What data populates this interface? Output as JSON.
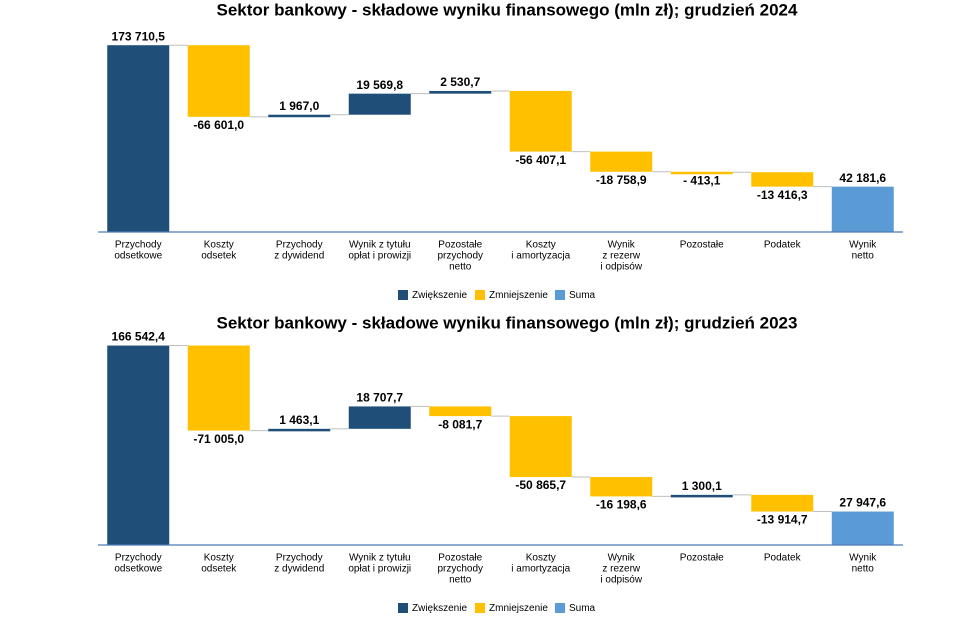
{
  "chart_data": [
    {
      "type": "waterfall",
      "title": "Sektor bankowy - składowe wyniku finansowego (mln zł); grudzień 2024",
      "categories": [
        [
          "Przychody",
          "odsetkowe"
        ],
        [
          "Koszty",
          "odsetek"
        ],
        [
          "Przychody",
          "z dywidend"
        ],
        [
          "Wynik z tytułu",
          "opłat i prowizji"
        ],
        [
          "Pozostałe",
          "przychody",
          "netto"
        ],
        [
          "Koszty",
          "i amortyzacja"
        ],
        [
          "Wynik",
          "z rezerw",
          "i odpisów"
        ],
        [
          "Pozostałe"
        ],
        [
          "Podatek"
        ],
        [
          "Wynik",
          "netto"
        ]
      ],
      "measures": [
        "relative",
        "relative",
        "relative",
        "relative",
        "relative",
        "relative",
        "relative",
        "relative",
        "relative",
        "total"
      ],
      "values": [
        173710.5,
        -66601.0,
        1967.0,
        19569.8,
        2530.7,
        -56407.1,
        -18758.9,
        -413.1,
        -13416.3,
        42181.6
      ],
      "value_labels": [
        "173 710,5",
        "-66 601,0",
        "1 967,0",
        "19 569,8",
        "2 530,7",
        "-56 407,1",
        "-18 758,9",
        "- 413,1",
        "-13 416,3",
        "42 181,6"
      ],
      "ylim": [
        0,
        186000
      ],
      "legend": [
        {
          "name": "Zwiększenie",
          "color": "#1f4e79"
        },
        {
          "name": "Zmniejszenie",
          "color": "#ffc000"
        },
        {
          "name": "Suma",
          "color": "#5b9bd5"
        }
      ]
    },
    {
      "type": "waterfall",
      "title": "Sektor bankowy - składowe wyniku finansowego (mln zł); grudzień 2023",
      "categories": [
        [
          "Przychody",
          "odsetkowe"
        ],
        [
          "Koszty",
          "odsetek"
        ],
        [
          "Przychody",
          "z dywidend"
        ],
        [
          "Wynik z tytułu",
          "opłat i prowizji"
        ],
        [
          "Pozostałe",
          "przychody",
          "netto"
        ],
        [
          "Koszty",
          "i amortyzacja"
        ],
        [
          "Wynik",
          "z rezerw",
          "i odpisów"
        ],
        [
          "Pozostałe"
        ],
        [
          "Podatek"
        ],
        [
          "Wynik",
          "netto"
        ]
      ],
      "measures": [
        "relative",
        "relative",
        "relative",
        "relative",
        "relative",
        "relative",
        "relative",
        "relative",
        "relative",
        "total"
      ],
      "values": [
        166542.4,
        -71005.0,
        1463.1,
        18707.7,
        -8081.7,
        -50865.7,
        -16198.6,
        1300.1,
        -13914.7,
        27947.6
      ],
      "value_labels": [
        "166 542,4",
        "-71 005,0",
        "1 463,1",
        "18 707,7",
        "-8 081,7",
        "-50 865,7",
        "-16 198,6",
        "1 300,1",
        "-13 914,7",
        "27 947,6"
      ],
      "ylim": [
        0,
        167000
      ],
      "legend": [
        {
          "name": "Zwiększenie",
          "color": "#1f4e79"
        },
        {
          "name": "Zmniejszenie",
          "color": "#ffc000"
        },
        {
          "name": "Suma",
          "color": "#5b9bd5"
        }
      ]
    }
  ]
}
